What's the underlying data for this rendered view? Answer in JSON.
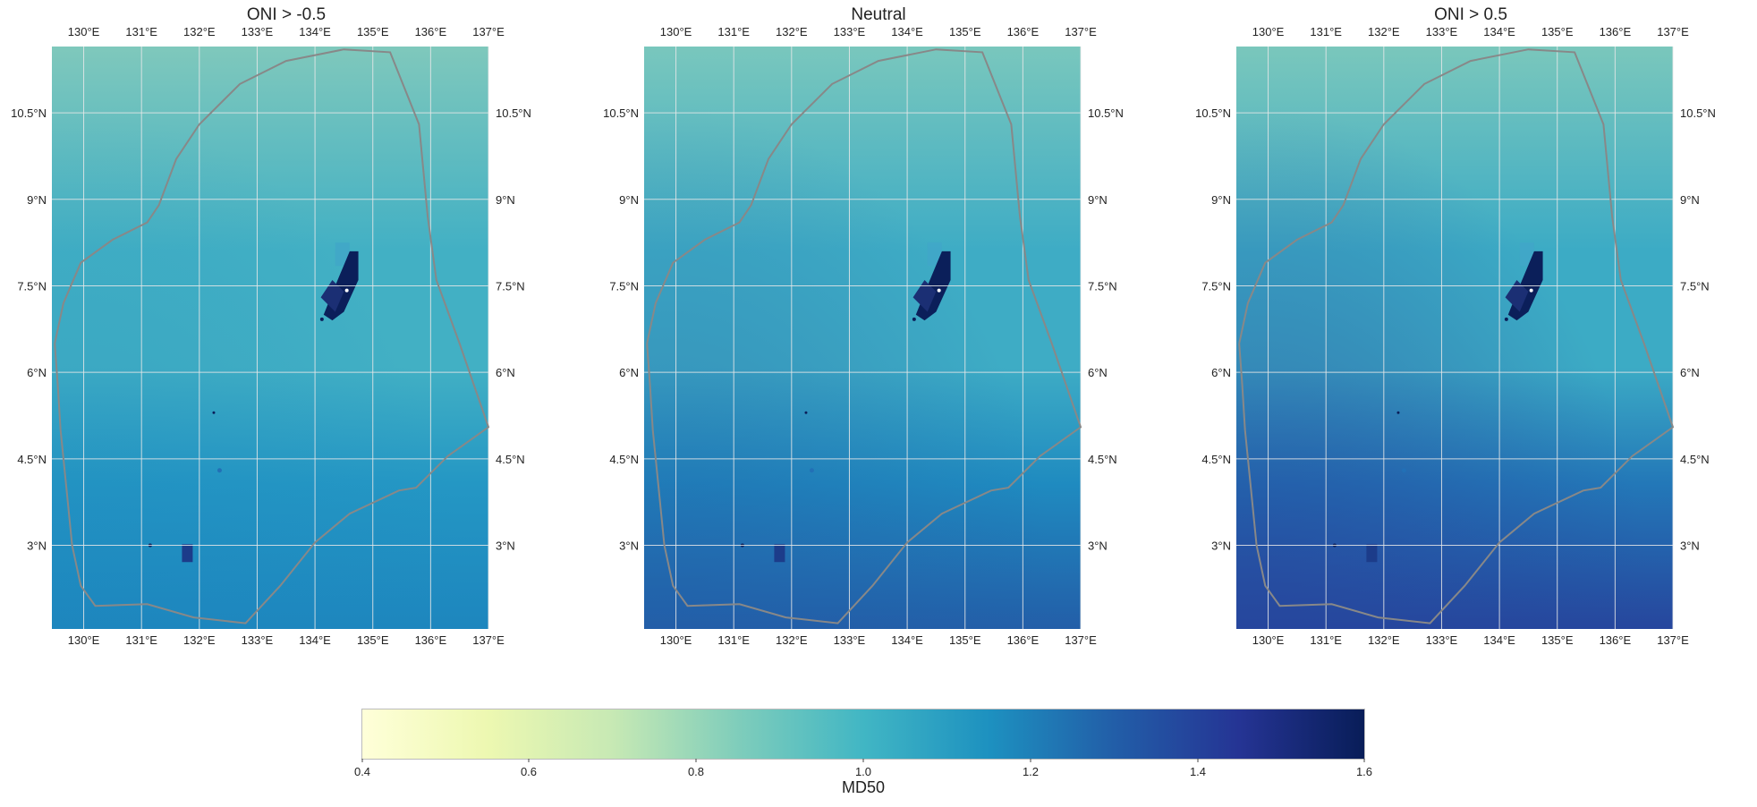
{
  "panels": [
    {
      "title": "ONI > -0.5",
      "variant": "neg"
    },
    {
      "title": "Neutral",
      "variant": "neu"
    },
    {
      "title": "ONI > 0.5",
      "variant": "pos"
    }
  ],
  "map": {
    "lon_ticks": [
      "130°E",
      "131°E",
      "132°E",
      "133°E",
      "134°E",
      "135°E",
      "136°E",
      "137°E"
    ],
    "lat_ticks": [
      "10.5°N",
      "9°N",
      "7.5°N",
      "6°N",
      "4.5°N",
      "3°N"
    ],
    "lon_values": [
      130,
      131,
      132,
      133,
      134,
      135,
      136,
      137
    ],
    "lat_values": [
      10.5,
      9,
      7.5,
      6,
      4.5,
      3
    ],
    "lon_range": [
      129.45,
      137.0
    ],
    "lat_range": [
      1.55,
      11.65
    ],
    "boundary_color": "#888888",
    "grid": true
  },
  "colorbar": {
    "label": "MD50",
    "ticks": [
      "0.4",
      "0.6",
      "0.8",
      "1.0",
      "1.2",
      "1.4",
      "1.6"
    ],
    "range": [
      0.4,
      1.6
    ],
    "colormap": "YlGnBu",
    "colors": [
      "#ffffd9",
      "#edf8b1",
      "#c7e9b4",
      "#7fcdbb",
      "#41b6c4",
      "#1d91c0",
      "#225ea8",
      "#253494",
      "#081d58"
    ]
  }
}
